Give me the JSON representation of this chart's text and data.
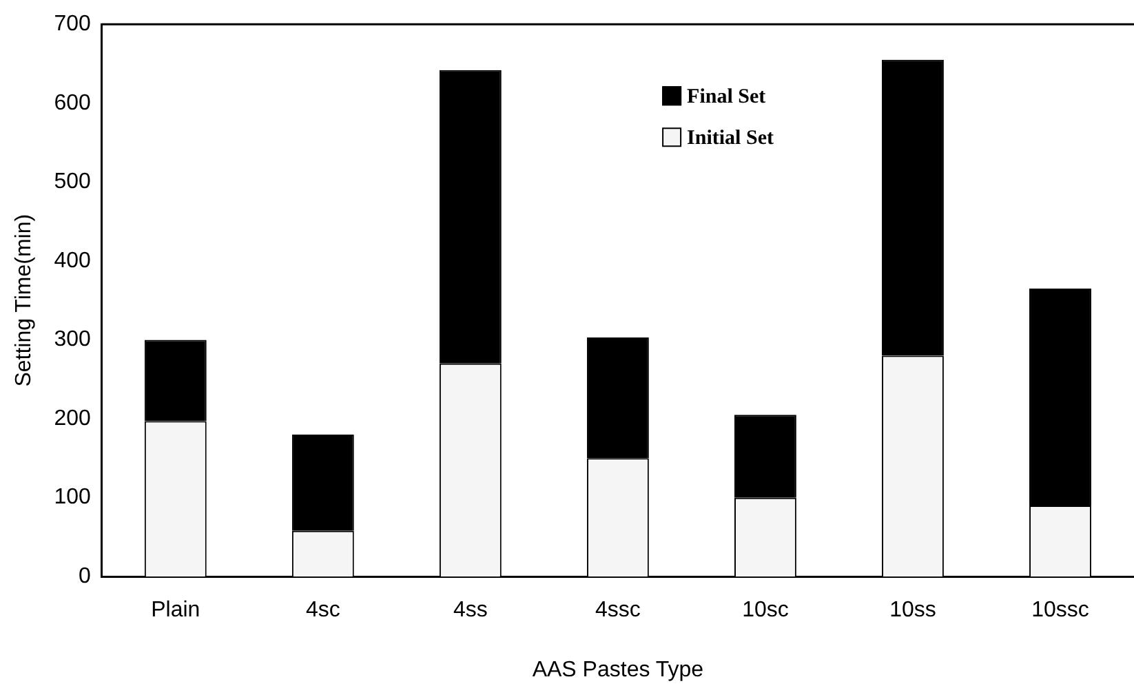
{
  "chart_data": {
    "type": "bar",
    "stacked": true,
    "xlabel": "AAS Pastes Type",
    "ylabel": "Setting Time(min)",
    "categories": [
      "Plain",
      "4sc",
      "4ss",
      "4ssc",
      "10sc",
      "10ss",
      "10ssc"
    ],
    "series": [
      {
        "name": "Initial Set",
        "color": "#f5f5f5",
        "values": [
          197,
          58,
          270,
          150,
          100,
          280,
          90
        ]
      },
      {
        "name": "Final Set",
        "color": "#000000",
        "values": [
          103,
          122,
          372,
          153,
          105,
          375,
          275
        ]
      }
    ],
    "ylim": [
      0,
      700
    ],
    "yticks": [
      0,
      100,
      200,
      300,
      400,
      500,
      600,
      700
    ],
    "grid": false,
    "legend": "top"
  }
}
